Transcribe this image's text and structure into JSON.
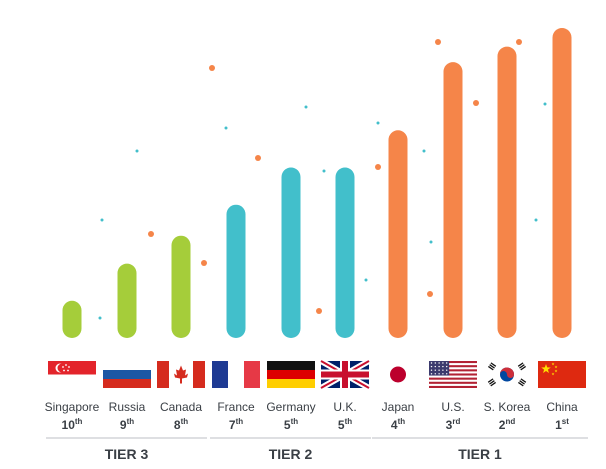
{
  "chart_data": {
    "type": "bar",
    "title": "",
    "xlabel": "",
    "ylabel": "",
    "ylim": [
      0,
      100
    ],
    "grid": false,
    "legend": "none",
    "categories": [
      "Singapore",
      "Russia",
      "Canada",
      "France",
      "Germany",
      "U.K.",
      "Japan",
      "U.S.",
      "S. Korea",
      "China"
    ],
    "ranks": [
      {
        "num": "10",
        "sup": "th"
      },
      {
        "num": "9",
        "sup": "th"
      },
      {
        "num": "8",
        "sup": "th"
      },
      {
        "num": "7",
        "sup": "th"
      },
      {
        "num": "5",
        "sup": "th"
      },
      {
        "num": "5",
        "sup": "th"
      },
      {
        "num": "4",
        "sup": "th"
      },
      {
        "num": "3",
        "sup": "rd"
      },
      {
        "num": "2",
        "sup": "nd"
      },
      {
        "num": "1",
        "sup": "st"
      }
    ],
    "values": [
      12,
      24,
      33,
      43,
      55,
      55,
      67,
      89,
      94,
      100
    ],
    "tiers": [
      {
        "label": "TIER 3",
        "members": [
          "Singapore",
          "Russia",
          "Canada"
        ],
        "color": "#a5cd3a"
      },
      {
        "label": "TIER 2",
        "members": [
          "France",
          "Germany",
          "U.K."
        ],
        "color": "#42bfcb"
      },
      {
        "label": "TIER 1",
        "members": [
          "Japan",
          "U.S.",
          "S. Korea",
          "China"
        ],
        "color": "#f58549"
      }
    ],
    "flags": [
      "flag-singapore-icon",
      "flag-russia-icon",
      "flag-canada-icon",
      "flag-france-icon",
      "flag-germany-icon",
      "flag-uk-icon",
      "flag-japan-icon",
      "flag-usa-icon",
      "flag-south-korea-icon",
      "flag-china-icon"
    ]
  },
  "colors": {
    "text": "#3a3f45",
    "divider": "#c9ccd0",
    "dot_orange": "#f58549",
    "dot_teal": "#42bfcb"
  }
}
